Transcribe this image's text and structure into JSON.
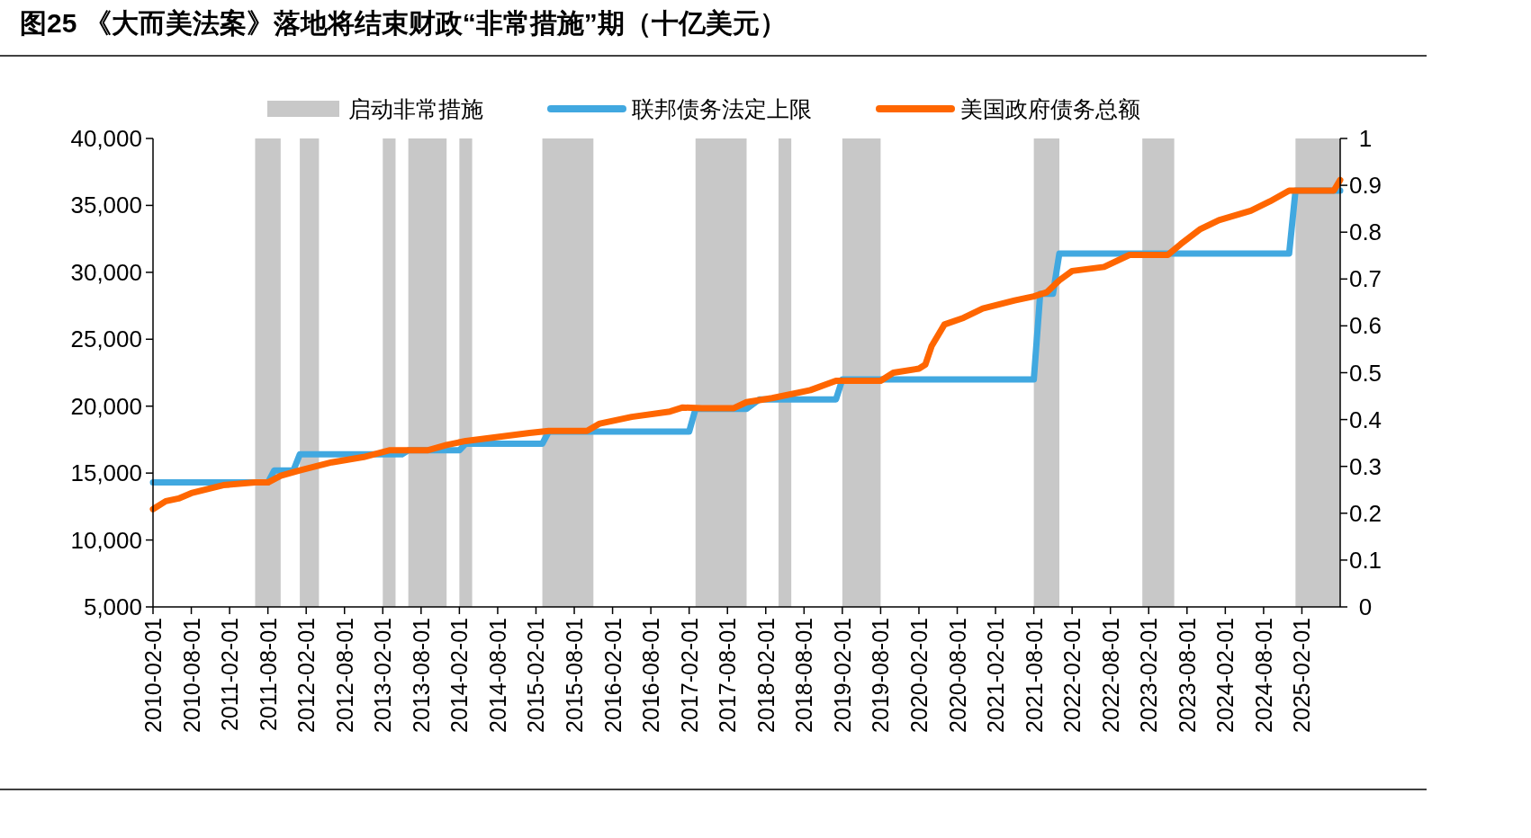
{
  "chart_data": {
    "type": "line",
    "title": "图25 《大而美法案》落地将结束财政“非常措施”期（十亿美元）",
    "xlim": [
      "2010-02-01",
      "2025-08-01"
    ],
    "xticks": [
      "2010-02-01",
      "2010-08-01",
      "2011-02-01",
      "2011-08-01",
      "2012-02-01",
      "2012-08-01",
      "2013-02-01",
      "2013-08-01",
      "2014-02-01",
      "2014-08-01",
      "2015-02-01",
      "2015-08-01",
      "2016-02-01",
      "2016-08-01",
      "2017-02-01",
      "2017-08-01",
      "2018-02-01",
      "2018-08-01",
      "2019-02-01",
      "2019-08-01",
      "2020-02-01",
      "2020-08-01",
      "2021-02-01",
      "2021-08-01",
      "2022-02-01",
      "2022-08-01",
      "2023-02-01",
      "2023-08-01",
      "2024-02-01",
      "2024-08-01",
      "2025-02-01"
    ],
    "ylim": [
      5000,
      40000
    ],
    "yticks": [
      {
        "value": 5000,
        "label": "5,000"
      },
      {
        "value": 10000,
        "label": "10,000"
      },
      {
        "value": 15000,
        "label": "15,000"
      },
      {
        "value": 20000,
        "label": "20,000"
      },
      {
        "value": 25000,
        "label": "25,000"
      },
      {
        "value": 30000,
        "label": "30,000"
      },
      {
        "value": 35000,
        "label": "35,000"
      },
      {
        "value": 40000,
        "label": "40,000"
      }
    ],
    "y2lim": [
      0,
      1
    ],
    "y2ticks": [
      0,
      0.1,
      0.2,
      0.3,
      0.4,
      0.5,
      0.6,
      0.7,
      0.8,
      0.9,
      1
    ],
    "legend": "top",
    "line_style": "solid",
    "bands": [
      {
        "axis": "x",
        "from": "2011-06",
        "to": "2011-10",
        "label": "启动非常措施",
        "color": "#c8c8c8"
      },
      {
        "axis": "x",
        "from": "2012-01",
        "to": "2012-04",
        "color": "#c8c8c8"
      },
      {
        "axis": "x",
        "from": "2013-02",
        "to": "2013-04",
        "color": "#c8c8c8"
      },
      {
        "axis": "x",
        "from": "2013-06",
        "to": "2013-12",
        "color": "#c8c8c8"
      },
      {
        "axis": "x",
        "from": "2014-02",
        "to": "2014-04",
        "color": "#c8c8c8"
      },
      {
        "axis": "x",
        "from": "2015-03",
        "to": "2015-11",
        "color": "#c8c8c8"
      },
      {
        "axis": "x",
        "from": "2017-03",
        "to": "2017-11",
        "color": "#c8c8c8"
      },
      {
        "axis": "x",
        "from": "2018-04",
        "to": "2018-06",
        "color": "#c8c8c8"
      },
      {
        "axis": "x",
        "from": "2019-02",
        "to": "2019-08",
        "color": "#c8c8c8"
      },
      {
        "axis": "x",
        "from": "2021-08",
        "to": "2021-12",
        "color": "#c8c8c8"
      },
      {
        "axis": "x",
        "from": "2023-01",
        "to": "2023-06",
        "color": "#c8c8c8"
      },
      {
        "axis": "x",
        "from": "2025-01",
        "to": "2025-08",
        "color": "#c8c8c8"
      }
    ],
    "series": [
      {
        "name": "联邦债务法定上限",
        "color": "#41a8e0",
        "x": [
          "2010-02",
          "2011-08",
          "2011-09",
          "2011-12",
          "2012-01",
          "2013-05",
          "2013-06",
          "2014-02",
          "2014-03",
          "2015-03",
          "2015-04",
          "2017-02",
          "2017-03",
          "2017-11",
          "2018-01",
          "2019-01",
          "2019-02",
          "2021-08",
          "2021-09",
          "2021-11",
          "2021-12",
          "2024-12",
          "2025-01",
          "2025-08"
        ],
        "values": [
          14300,
          14300,
          15200,
          15200,
          16400,
          16400,
          16700,
          16700,
          17200,
          17200,
          18100,
          18100,
          19800,
          19800,
          20500,
          20500,
          22000,
          22000,
          28400,
          28400,
          31400,
          31400,
          36100,
          36100
        ]
      },
      {
        "name": "美国政府债务总额",
        "color": "#ff6600",
        "x": [
          "2010-02",
          "2010-04",
          "2010-06",
          "2010-08",
          "2011-01",
          "2011-06",
          "2011-08",
          "2011-10",
          "2012-01",
          "2012-06",
          "2012-11",
          "2013-03",
          "2013-09",
          "2013-12",
          "2014-03",
          "2014-08",
          "2015-01",
          "2015-04",
          "2015-10",
          "2015-12",
          "2016-05",
          "2016-11",
          "2017-01",
          "2017-04",
          "2017-09",
          "2017-11",
          "2018-03",
          "2018-09",
          "2019-01",
          "2019-08",
          "2019-10",
          "2020-02",
          "2020-03",
          "2020-04",
          "2020-06",
          "2020-09",
          "2020-12",
          "2021-05",
          "2021-08",
          "2021-10",
          "2021-12",
          "2022-02",
          "2022-07",
          "2022-11",
          "2023-05",
          "2023-07",
          "2023-10",
          "2024-01",
          "2024-06",
          "2024-09",
          "2024-12",
          "2025-07",
          "2025-08"
        ],
        "values": [
          12300,
          12900,
          13100,
          13500,
          14100,
          14300,
          14300,
          14800,
          15200,
          15800,
          16200,
          16700,
          16700,
          17100,
          17400,
          17700,
          18000,
          18150,
          18150,
          18700,
          19200,
          19600,
          19900,
          19850,
          19850,
          20300,
          20600,
          21200,
          21900,
          21900,
          22500,
          22800,
          23100,
          24500,
          26100,
          26600,
          27300,
          27900,
          28200,
          28500,
          29400,
          30100,
          30400,
          31300,
          31300,
          32100,
          33200,
          33900,
          34600,
          35300,
          36100,
          36100,
          36900
        ]
      }
    ]
  }
}
